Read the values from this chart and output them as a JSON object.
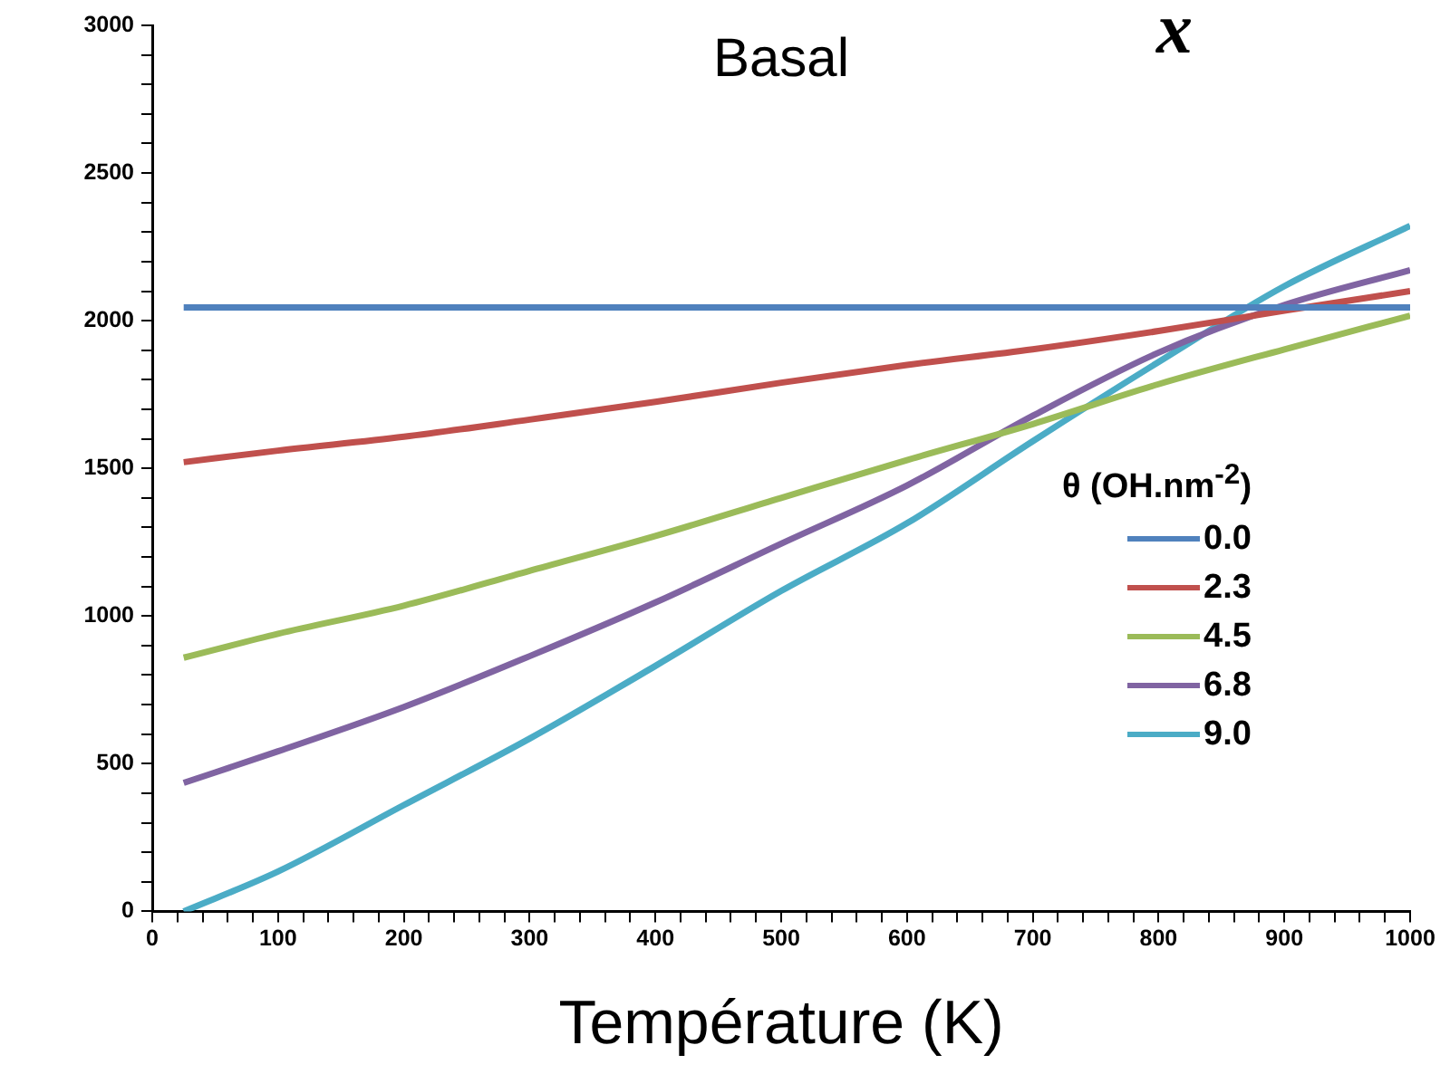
{
  "chart_data": {
    "type": "line",
    "title": "Basal",
    "xlabel": "Température (K)",
    "legend_title": "θ (OH.nm$^{-2}$)",
    "annotations": [
      "x"
    ],
    "x": [
      25,
      100,
      200,
      300,
      400,
      500,
      600,
      700,
      800,
      900,
      1000
    ],
    "series": [
      {
        "name": "0.0",
        "color": "#4f81bd",
        "values": [
          2045,
          2045,
          2045,
          2045,
          2045,
          2045,
          2045,
          2045,
          2045,
          2045,
          2045
        ]
      },
      {
        "name": "2.3",
        "color": "#c0504d",
        "values": [
          1521,
          1560,
          1607,
          1665,
          1725,
          1790,
          1850,
          1903,
          1965,
          2034,
          2100
        ]
      },
      {
        "name": "4.5",
        "color": "#9bbb59",
        "values": [
          859,
          940,
          1035,
          1153,
          1271,
          1400,
          1528,
          1650,
          1785,
          1903,
          2017
        ]
      },
      {
        "name": "6.8",
        "color": "#8064a2",
        "values": [
          435,
          542,
          692,
          864,
          1046,
          1245,
          1442,
          1678,
          1892,
          2053,
          2171
        ]
      },
      {
        "name": "9.0",
        "color": "#4bacc6",
        "values": [
          0,
          135,
          360,
          585,
          831,
          1085,
          1314,
          1592,
          1860,
          2117,
          2321
        ]
      }
    ],
    "xlim": [
      0,
      1000
    ],
    "ylim": [
      0,
      3000
    ],
    "xticks": [
      0,
      {
        "value": 20,
        "label": null
      },
      {
        "value": 40,
        "label": null
      },
      {
        "value": 60,
        "label": null
      },
      {
        "value": 80,
        "label": null
      },
      100,
      {
        "value": 120,
        "label": null
      },
      {
        "value": 140,
        "label": null
      },
      {
        "value": 160,
        "label": null
      },
      {
        "value": 180,
        "label": null
      },
      200,
      {
        "value": 220,
        "label": null
      },
      {
        "value": 240,
        "label": null
      },
      {
        "value": 260,
        "label": null
      },
      {
        "value": 280,
        "label": null
      },
      300,
      {
        "value": 320,
        "label": null
      },
      {
        "value": 340,
        "label": null
      },
      {
        "value": 360,
        "label": null
      },
      {
        "value": 380,
        "label": null
      },
      400,
      {
        "value": 420,
        "label": null
      },
      {
        "value": 440,
        "label": null
      },
      {
        "value": 460,
        "label": null
      },
      {
        "value": 480,
        "label": null
      },
      500,
      {
        "value": 520,
        "label": null
      },
      {
        "value": 540,
        "label": null
      },
      {
        "value": 560,
        "label": null
      },
      {
        "value": 580,
        "label": null
      },
      600,
      {
        "value": 620,
        "label": null
      },
      {
        "value": 640,
        "label": null
      },
      {
        "value": 660,
        "label": null
      },
      {
        "value": 680,
        "label": null
      },
      700,
      {
        "value": 720,
        "label": null
      },
      {
        "value": 740,
        "label": null
      },
      {
        "value": 760,
        "label": null
      },
      {
        "value": 780,
        "label": null
      },
      800,
      {
        "value": 820,
        "label": null
      },
      {
        "value": 840,
        "label": null
      },
      {
        "value": 860,
        "label": null
      },
      {
        "value": 880,
        "label": null
      },
      900,
      {
        "value": 920,
        "label": null
      },
      {
        "value": 940,
        "label": null
      },
      {
        "value": 960,
        "label": null
      },
      {
        "value": 980,
        "label": null
      },
      1000
    ],
    "yticks": [
      0,
      {
        "value": 100,
        "label": null
      },
      {
        "value": 200,
        "label": null
      },
      {
        "value": 300,
        "label": null
      },
      {
        "value": 400,
        "label": null
      },
      500,
      {
        "value": 600,
        "label": null
      },
      {
        "value": 700,
        "label": null
      },
      {
        "value": 800,
        "label": null
      },
      {
        "value": 900,
        "label": null
      },
      1000,
      {
        "value": 1100,
        "label": null
      },
      {
        "value": 1200,
        "label": null
      },
      {
        "value": 1300,
        "label": null
      },
      {
        "value": 1400,
        "label": null
      },
      1500,
      {
        "value": 1600,
        "label": null
      },
      {
        "value": 1700,
        "label": null
      },
      {
        "value": 1800,
        "label": null
      },
      {
        "value": 1900,
        "label": null
      },
      2000,
      {
        "value": 2100,
        "label": null
      },
      {
        "value": 2200,
        "label": null
      },
      {
        "value": 2300,
        "label": null
      },
      {
        "value": 2400,
        "label": null
      },
      2500,
      {
        "value": 2600,
        "label": null
      },
      {
        "value": 2700,
        "label": null
      },
      {
        "value": 2800,
        "label": null
      },
      {
        "value": 2900,
        "label": null
      },
      3000
    ],
    "grid": false,
    "legend": "right",
    "marker": "none",
    "line_style": "solid"
  }
}
